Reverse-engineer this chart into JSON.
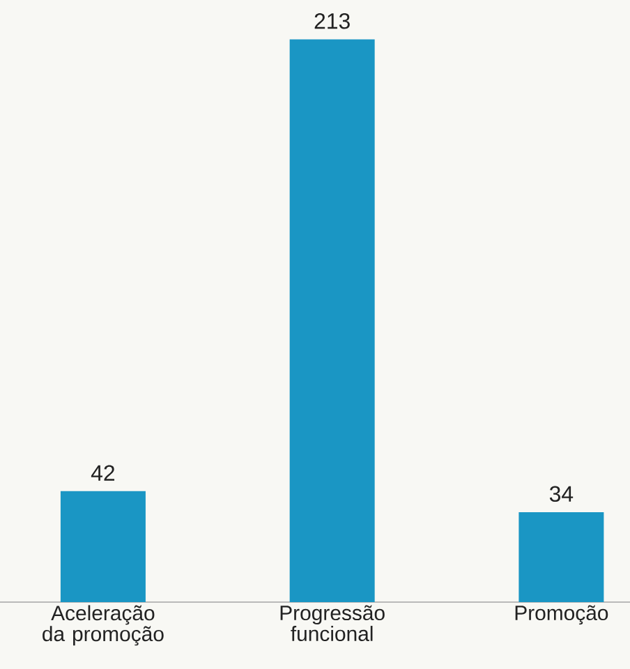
{
  "chart_data": {
    "type": "bar",
    "categories": [
      "Aceleração da promoção",
      "Progressão funcional",
      "Promoção"
    ],
    "values": [
      42,
      213,
      34
    ],
    "color": "#1a96c4",
    "data_labels": true
  }
}
